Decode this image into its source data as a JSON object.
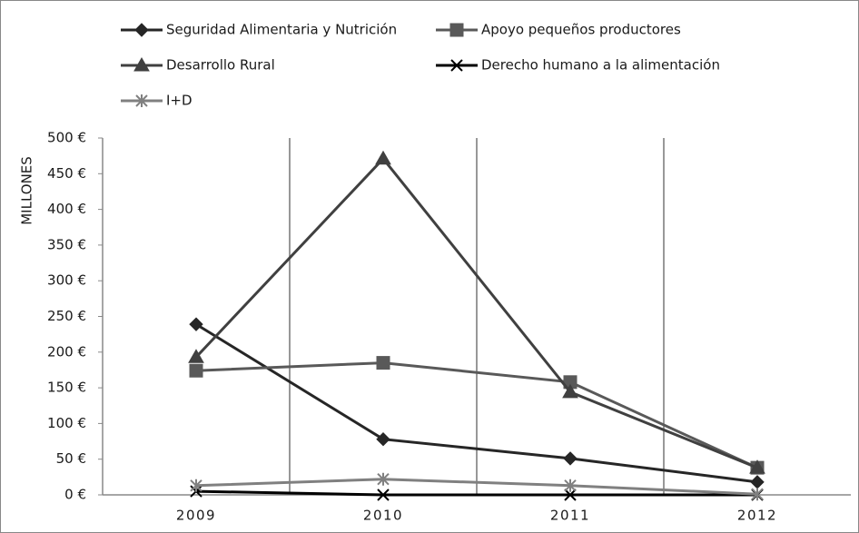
{
  "chart_data": {
    "type": "line",
    "y_label": "MILLONES",
    "categories": [
      "2009",
      "2010",
      "2011",
      "2012"
    ],
    "series": [
      {
        "name": "Seguridad Alimentaria y Nutrición",
        "color": "#262626",
        "marker": "diamond",
        "values": [
          239,
          78,
          51,
          18
        ]
      },
      {
        "name": "Apoyo pequeños productores",
        "color": "#595959",
        "marker": "square",
        "values": [
          174,
          185,
          158,
          38
        ]
      },
      {
        "name": "Desarrollo Rural",
        "color": "#404040",
        "marker": "triangle",
        "values": [
          193,
          471,
          144,
          38
        ]
      },
      {
        "name": "Derecho humano a la alimentación",
        "color": "#000000",
        "marker": "x",
        "values": [
          5,
          0,
          0,
          0
        ]
      },
      {
        "name": "I+D",
        "color": "#808080",
        "marker": "asterisk",
        "values": [
          13,
          22,
          13,
          1
        ]
      }
    ],
    "ylim": [
      0,
      500
    ],
    "yticks": [
      {
        "value": 0,
        "label": "0 €"
      },
      {
        "value": 50,
        "label": "50 €"
      },
      {
        "value": 100,
        "label": "100 €"
      },
      {
        "value": 150,
        "label": "150 €"
      },
      {
        "value": 200,
        "label": "200 €"
      },
      {
        "value": 250,
        "label": "250 €"
      },
      {
        "value": 300,
        "label": "300 €"
      },
      {
        "value": 350,
        "label": "350 €"
      },
      {
        "value": 400,
        "label": "400 €"
      },
      {
        "value": 450,
        "label": "450 €"
      },
      {
        "value": 500,
        "label": "500 €"
      }
    ],
    "grid": true,
    "legend": "top"
  }
}
